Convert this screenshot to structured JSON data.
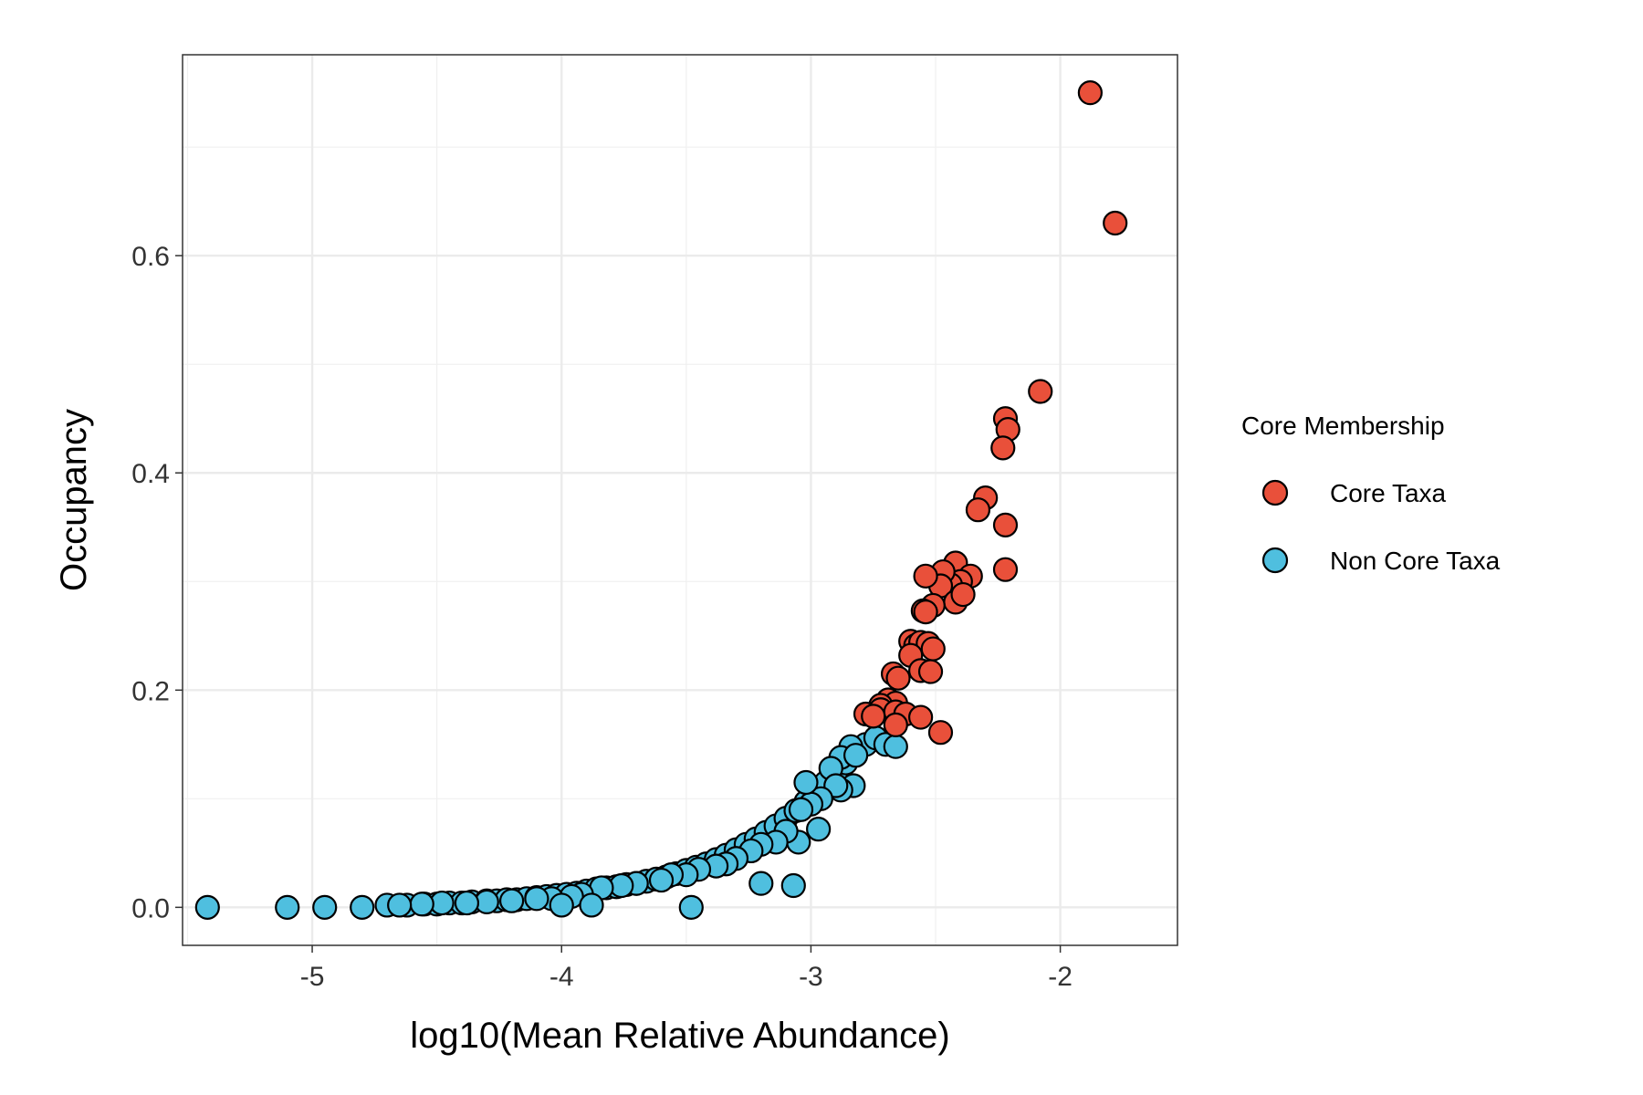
{
  "chart_data": {
    "type": "scatter",
    "title": "",
    "xlabel": "log10(Mean Relative Abundance)",
    "ylabel": "Occupancy",
    "xlim": [
      -5.52,
      -1.53
    ],
    "ylim": [
      -0.035,
      0.785
    ],
    "x_ticks": [
      -5,
      -4,
      -3,
      -2
    ],
    "x_tick_labels": [
      "-5",
      "-4",
      "-3",
      "-2"
    ],
    "y_ticks": [
      0.0,
      0.2,
      0.4,
      0.6
    ],
    "y_tick_labels": [
      "0.0",
      "0.2",
      "0.4",
      "0.6"
    ],
    "grid": true,
    "legend": {
      "title": "Core Membership",
      "position": "right"
    },
    "series": [
      {
        "name": "Core Taxa",
        "color": "#E9503A",
        "points": [
          [
            -1.88,
            0.75
          ],
          [
            -1.78,
            0.63
          ],
          [
            -2.08,
            0.475
          ],
          [
            -2.22,
            0.45
          ],
          [
            -2.21,
            0.44
          ],
          [
            -2.23,
            0.423
          ],
          [
            -2.3,
            0.377
          ],
          [
            -2.33,
            0.366
          ],
          [
            -2.22,
            0.352
          ],
          [
            -2.22,
            0.311
          ],
          [
            -2.42,
            0.317
          ],
          [
            -2.36,
            0.305
          ],
          [
            -2.4,
            0.3
          ],
          [
            -2.44,
            0.297
          ],
          [
            -2.47,
            0.309
          ],
          [
            -2.48,
            0.296
          ],
          [
            -2.54,
            0.305
          ],
          [
            -2.42,
            0.281
          ],
          [
            -2.39,
            0.288
          ],
          [
            -2.51,
            0.278
          ],
          [
            -2.55,
            0.273
          ],
          [
            -2.54,
            0.272
          ],
          [
            -2.6,
            0.245
          ],
          [
            -2.58,
            0.241
          ],
          [
            -2.56,
            0.244
          ],
          [
            -2.53,
            0.243
          ],
          [
            -2.51,
            0.238
          ],
          [
            -2.6,
            0.232
          ],
          [
            -2.56,
            0.218
          ],
          [
            -2.52,
            0.217
          ],
          [
            -2.67,
            0.215
          ],
          [
            -2.65,
            0.211
          ],
          [
            -2.69,
            0.191
          ],
          [
            -2.66,
            0.188
          ],
          [
            -2.72,
            0.186
          ],
          [
            -2.78,
            0.178
          ],
          [
            -2.72,
            0.182
          ],
          [
            -2.66,
            0.18
          ],
          [
            -2.62,
            0.178
          ],
          [
            -2.56,
            0.175
          ],
          [
            -2.75,
            0.176
          ],
          [
            -2.66,
            0.168
          ],
          [
            -2.48,
            0.161
          ]
        ]
      },
      {
        "name": "Non Core Taxa",
        "color": "#4FBFDF",
        "points": [
          [
            -5.42,
            0.0
          ],
          [
            -5.1,
            0.0
          ],
          [
            -4.95,
            0.0
          ],
          [
            -4.8,
            0.0
          ],
          [
            -4.7,
            0.002
          ],
          [
            -4.62,
            0.002
          ],
          [
            -4.55,
            0.003
          ],
          [
            -4.5,
            0.003
          ],
          [
            -4.45,
            0.004
          ],
          [
            -4.4,
            0.004
          ],
          [
            -4.36,
            0.005
          ],
          [
            -4.3,
            0.006
          ],
          [
            -4.26,
            0.006
          ],
          [
            -4.22,
            0.007
          ],
          [
            -4.18,
            0.007
          ],
          [
            -4.14,
            0.008
          ],
          [
            -4.1,
            0.009
          ],
          [
            -4.06,
            0.01
          ],
          [
            -4.02,
            0.011
          ],
          [
            -3.98,
            0.012
          ],
          [
            -3.94,
            0.013
          ],
          [
            -3.9,
            0.015
          ],
          [
            -3.86,
            0.017
          ],
          [
            -3.82,
            0.018
          ],
          [
            -3.78,
            0.019
          ],
          [
            -3.74,
            0.021
          ],
          [
            -3.7,
            0.022
          ],
          [
            -3.66,
            0.024
          ],
          [
            -3.62,
            0.026
          ],
          [
            -3.58,
            0.028
          ],
          [
            -3.54,
            0.031
          ],
          [
            -3.5,
            0.034
          ],
          [
            -3.46,
            0.037
          ],
          [
            -3.42,
            0.04
          ],
          [
            -3.38,
            0.044
          ],
          [
            -3.34,
            0.048
          ],
          [
            -3.3,
            0.053
          ],
          [
            -3.26,
            0.058
          ],
          [
            -3.22,
            0.063
          ],
          [
            -3.18,
            0.069
          ],
          [
            -3.14,
            0.075
          ],
          [
            -3.1,
            0.082
          ],
          [
            -3.06,
            0.089
          ],
          [
            -3.02,
            0.097
          ],
          [
            -2.98,
            0.106
          ],
          [
            -2.94,
            0.115
          ],
          [
            -2.9,
            0.124
          ],
          [
            -2.86,
            0.133
          ],
          [
            -2.82,
            0.142
          ],
          [
            -2.78,
            0.15
          ],
          [
            -2.74,
            0.156
          ],
          [
            -2.7,
            0.15
          ],
          [
            -2.66,
            0.148
          ],
          [
            -2.84,
            0.148
          ],
          [
            -2.88,
            0.138
          ],
          [
            -2.92,
            0.128
          ],
          [
            -2.83,
            0.112
          ],
          [
            -2.88,
            0.108
          ],
          [
            -2.9,
            0.112
          ],
          [
            -2.96,
            0.1
          ],
          [
            -3.0,
            0.095
          ],
          [
            -3.04,
            0.09
          ],
          [
            -2.97,
            0.072
          ],
          [
            -3.05,
            0.06
          ],
          [
            -3.1,
            0.07
          ],
          [
            -3.14,
            0.06
          ],
          [
            -3.2,
            0.058
          ],
          [
            -3.24,
            0.052
          ],
          [
            -3.3,
            0.045
          ],
          [
            -3.34,
            0.04
          ],
          [
            -3.38,
            0.038
          ],
          [
            -3.45,
            0.035
          ],
          [
            -3.5,
            0.03
          ],
          [
            -3.56,
            0.03
          ],
          [
            -3.07,
            0.02
          ],
          [
            -3.2,
            0.022
          ],
          [
            -3.48,
            0.0
          ],
          [
            -3.6,
            0.025
          ],
          [
            -3.7,
            0.022
          ],
          [
            -3.76,
            0.02
          ],
          [
            -3.84,
            0.018
          ],
          [
            -3.92,
            0.012
          ],
          [
            -3.96,
            0.01
          ],
          [
            -4.04,
            0.008
          ],
          [
            -4.1,
            0.008
          ],
          [
            -3.88,
            0.002
          ],
          [
            -4.0,
            0.002
          ],
          [
            -4.2,
            0.006
          ],
          [
            -4.3,
            0.005
          ],
          [
            -4.38,
            0.004
          ],
          [
            -4.48,
            0.004
          ],
          [
            -4.56,
            0.003
          ],
          [
            -4.65,
            0.002
          ],
          [
            -3.02,
            0.115
          ],
          [
            -2.82,
            0.14
          ]
        ]
      }
    ]
  }
}
